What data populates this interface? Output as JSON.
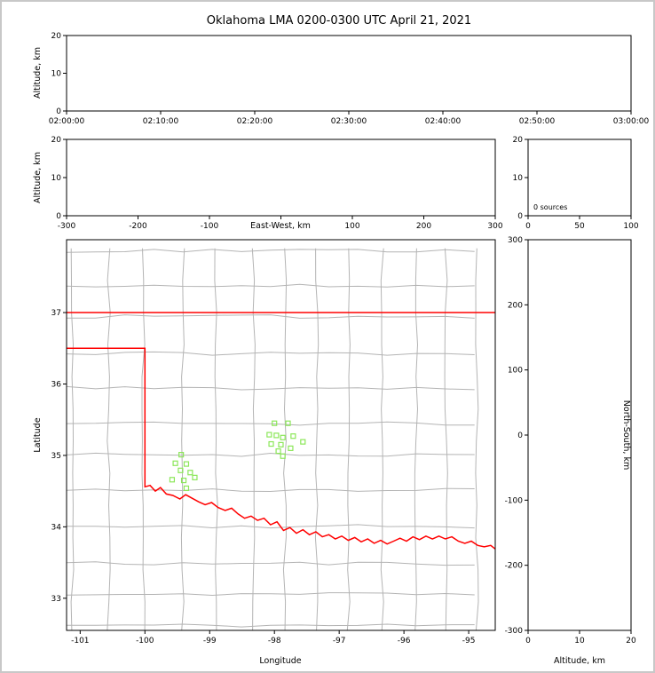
{
  "figure": {
    "title": "Oklahoma LMA 0200-0300 UTC April 21, 2021",
    "colors": {
      "state_border": "#ff0000",
      "county_lines": "#b4b4b4",
      "stations": "#8ce75a",
      "frame": "#c8c8c8"
    }
  },
  "chart_data": [
    {
      "id": "time_height",
      "type": "scatter",
      "ylabel": "Altitude, km",
      "ylim": [
        0,
        20
      ],
      "yticks": [
        0,
        10,
        20
      ],
      "xtick_labels": [
        "02:00:00",
        "02:10:00",
        "02:20:00",
        "02:30:00",
        "02:40:00",
        "02:50:00",
        "03:00:00"
      ],
      "points": []
    },
    {
      "id": "ew_height",
      "type": "scatter",
      "xlabel": "East-West, km",
      "ylabel": "Altitude, km",
      "xlim": [
        -300,
        300
      ],
      "xticks": [
        -300,
        -200,
        -100,
        0,
        100,
        200,
        300
      ],
      "xtick_labels": [
        "-300",
        "-200",
        "-100",
        "",
        "100",
        "200",
        "300"
      ],
      "ylim": [
        0,
        20
      ],
      "yticks": [
        0,
        10,
        20
      ],
      "points": []
    },
    {
      "id": "alt_histogram",
      "type": "line",
      "annotation": "0 sources",
      "xlim": [
        0,
        100
      ],
      "xticks": [
        0,
        50,
        100
      ],
      "ylim": [
        0,
        20
      ],
      "yticks": [
        0,
        10,
        20
      ],
      "points": []
    },
    {
      "id": "plan_view",
      "type": "scatter",
      "xlabel": "Longitude",
      "ylabel": "Latitude",
      "xlim": [
        -101.21,
        -94.59
      ],
      "xticks": [
        -101,
        -100,
        -99,
        -98,
        -97,
        -96,
        -95
      ],
      "ylim": [
        32.55,
        38.02
      ],
      "yticks": [
        33,
        34,
        35,
        36,
        37
      ],
      "stations": [
        [
          -98.0,
          35.45
        ],
        [
          -97.79,
          35.45
        ],
        [
          -98.08,
          35.29
        ],
        [
          -97.97,
          35.28
        ],
        [
          -97.87,
          35.25
        ],
        [
          -97.71,
          35.27
        ],
        [
          -98.05,
          35.16
        ],
        [
          -97.9,
          35.15
        ],
        [
          -97.56,
          35.19
        ],
        [
          -97.94,
          35.06
        ],
        [
          -97.75,
          35.1
        ],
        [
          -97.87,
          34.99
        ],
        [
          -99.44,
          35.01
        ],
        [
          -99.53,
          34.89
        ],
        [
          -99.36,
          34.88
        ],
        [
          -99.45,
          34.79
        ],
        [
          -99.3,
          34.76
        ],
        [
          -99.58,
          34.66
        ],
        [
          -99.4,
          34.65
        ],
        [
          -99.23,
          34.69
        ],
        [
          -99.36,
          34.54
        ]
      ],
      "state_border": {
        "north_boundary_lat": 37.0,
        "panhandle_south_lat": 36.5,
        "west_boundary_lon": -100.0,
        "red_river": [
          [
            -100.0,
            34.56
          ],
          [
            -99.92,
            34.58
          ],
          [
            -99.84,
            34.5
          ],
          [
            -99.76,
            34.55
          ],
          [
            -99.67,
            34.46
          ],
          [
            -99.57,
            34.44
          ],
          [
            -99.46,
            34.39
          ],
          [
            -99.37,
            34.45
          ],
          [
            -99.27,
            34.4
          ],
          [
            -99.17,
            34.35
          ],
          [
            -99.07,
            34.31
          ],
          [
            -98.97,
            34.34
          ],
          [
            -98.87,
            34.27
          ],
          [
            -98.76,
            34.23
          ],
          [
            -98.66,
            34.26
          ],
          [
            -98.56,
            34.18
          ],
          [
            -98.46,
            34.12
          ],
          [
            -98.36,
            34.15
          ],
          [
            -98.26,
            34.09
          ],
          [
            -98.16,
            34.12
          ],
          [
            -98.06,
            34.03
          ],
          [
            -97.96,
            34.07
          ],
          [
            -97.86,
            33.95
          ],
          [
            -97.76,
            33.99
          ],
          [
            -97.66,
            33.91
          ],
          [
            -97.56,
            33.96
          ],
          [
            -97.46,
            33.89
          ],
          [
            -97.36,
            33.93
          ],
          [
            -97.26,
            33.86
          ],
          [
            -97.16,
            33.89
          ],
          [
            -97.06,
            33.83
          ],
          [
            -96.96,
            33.87
          ],
          [
            -96.86,
            33.81
          ],
          [
            -96.76,
            33.85
          ],
          [
            -96.66,
            33.79
          ],
          [
            -96.56,
            33.83
          ],
          [
            -96.46,
            33.77
          ],
          [
            -96.36,
            33.81
          ],
          [
            -96.26,
            33.76
          ],
          [
            -96.16,
            33.8
          ],
          [
            -96.06,
            33.84
          ],
          [
            -95.96,
            33.8
          ],
          [
            -95.86,
            33.86
          ],
          [
            -95.76,
            33.82
          ],
          [
            -95.66,
            33.87
          ],
          [
            -95.56,
            33.83
          ],
          [
            -95.46,
            33.87
          ],
          [
            -95.36,
            33.83
          ],
          [
            -95.26,
            33.86
          ],
          [
            -95.16,
            33.8
          ],
          [
            -95.06,
            33.77
          ],
          [
            -94.96,
            33.8
          ],
          [
            -94.86,
            33.74
          ],
          [
            -94.76,
            33.72
          ],
          [
            -94.66,
            33.74
          ],
          [
            -94.59,
            33.69
          ]
        ]
      }
    },
    {
      "id": "ns_height",
      "type": "scatter",
      "xlabel": "Altitude, km",
      "ylabel": "North-South, km",
      "xlim": [
        0,
        20
      ],
      "xticks": [
        0,
        10,
        20
      ],
      "ylim": [
        -300,
        300
      ],
      "yticks": [
        300,
        200,
        100,
        0,
        -100,
        -200,
        -300
      ],
      "points": []
    }
  ]
}
